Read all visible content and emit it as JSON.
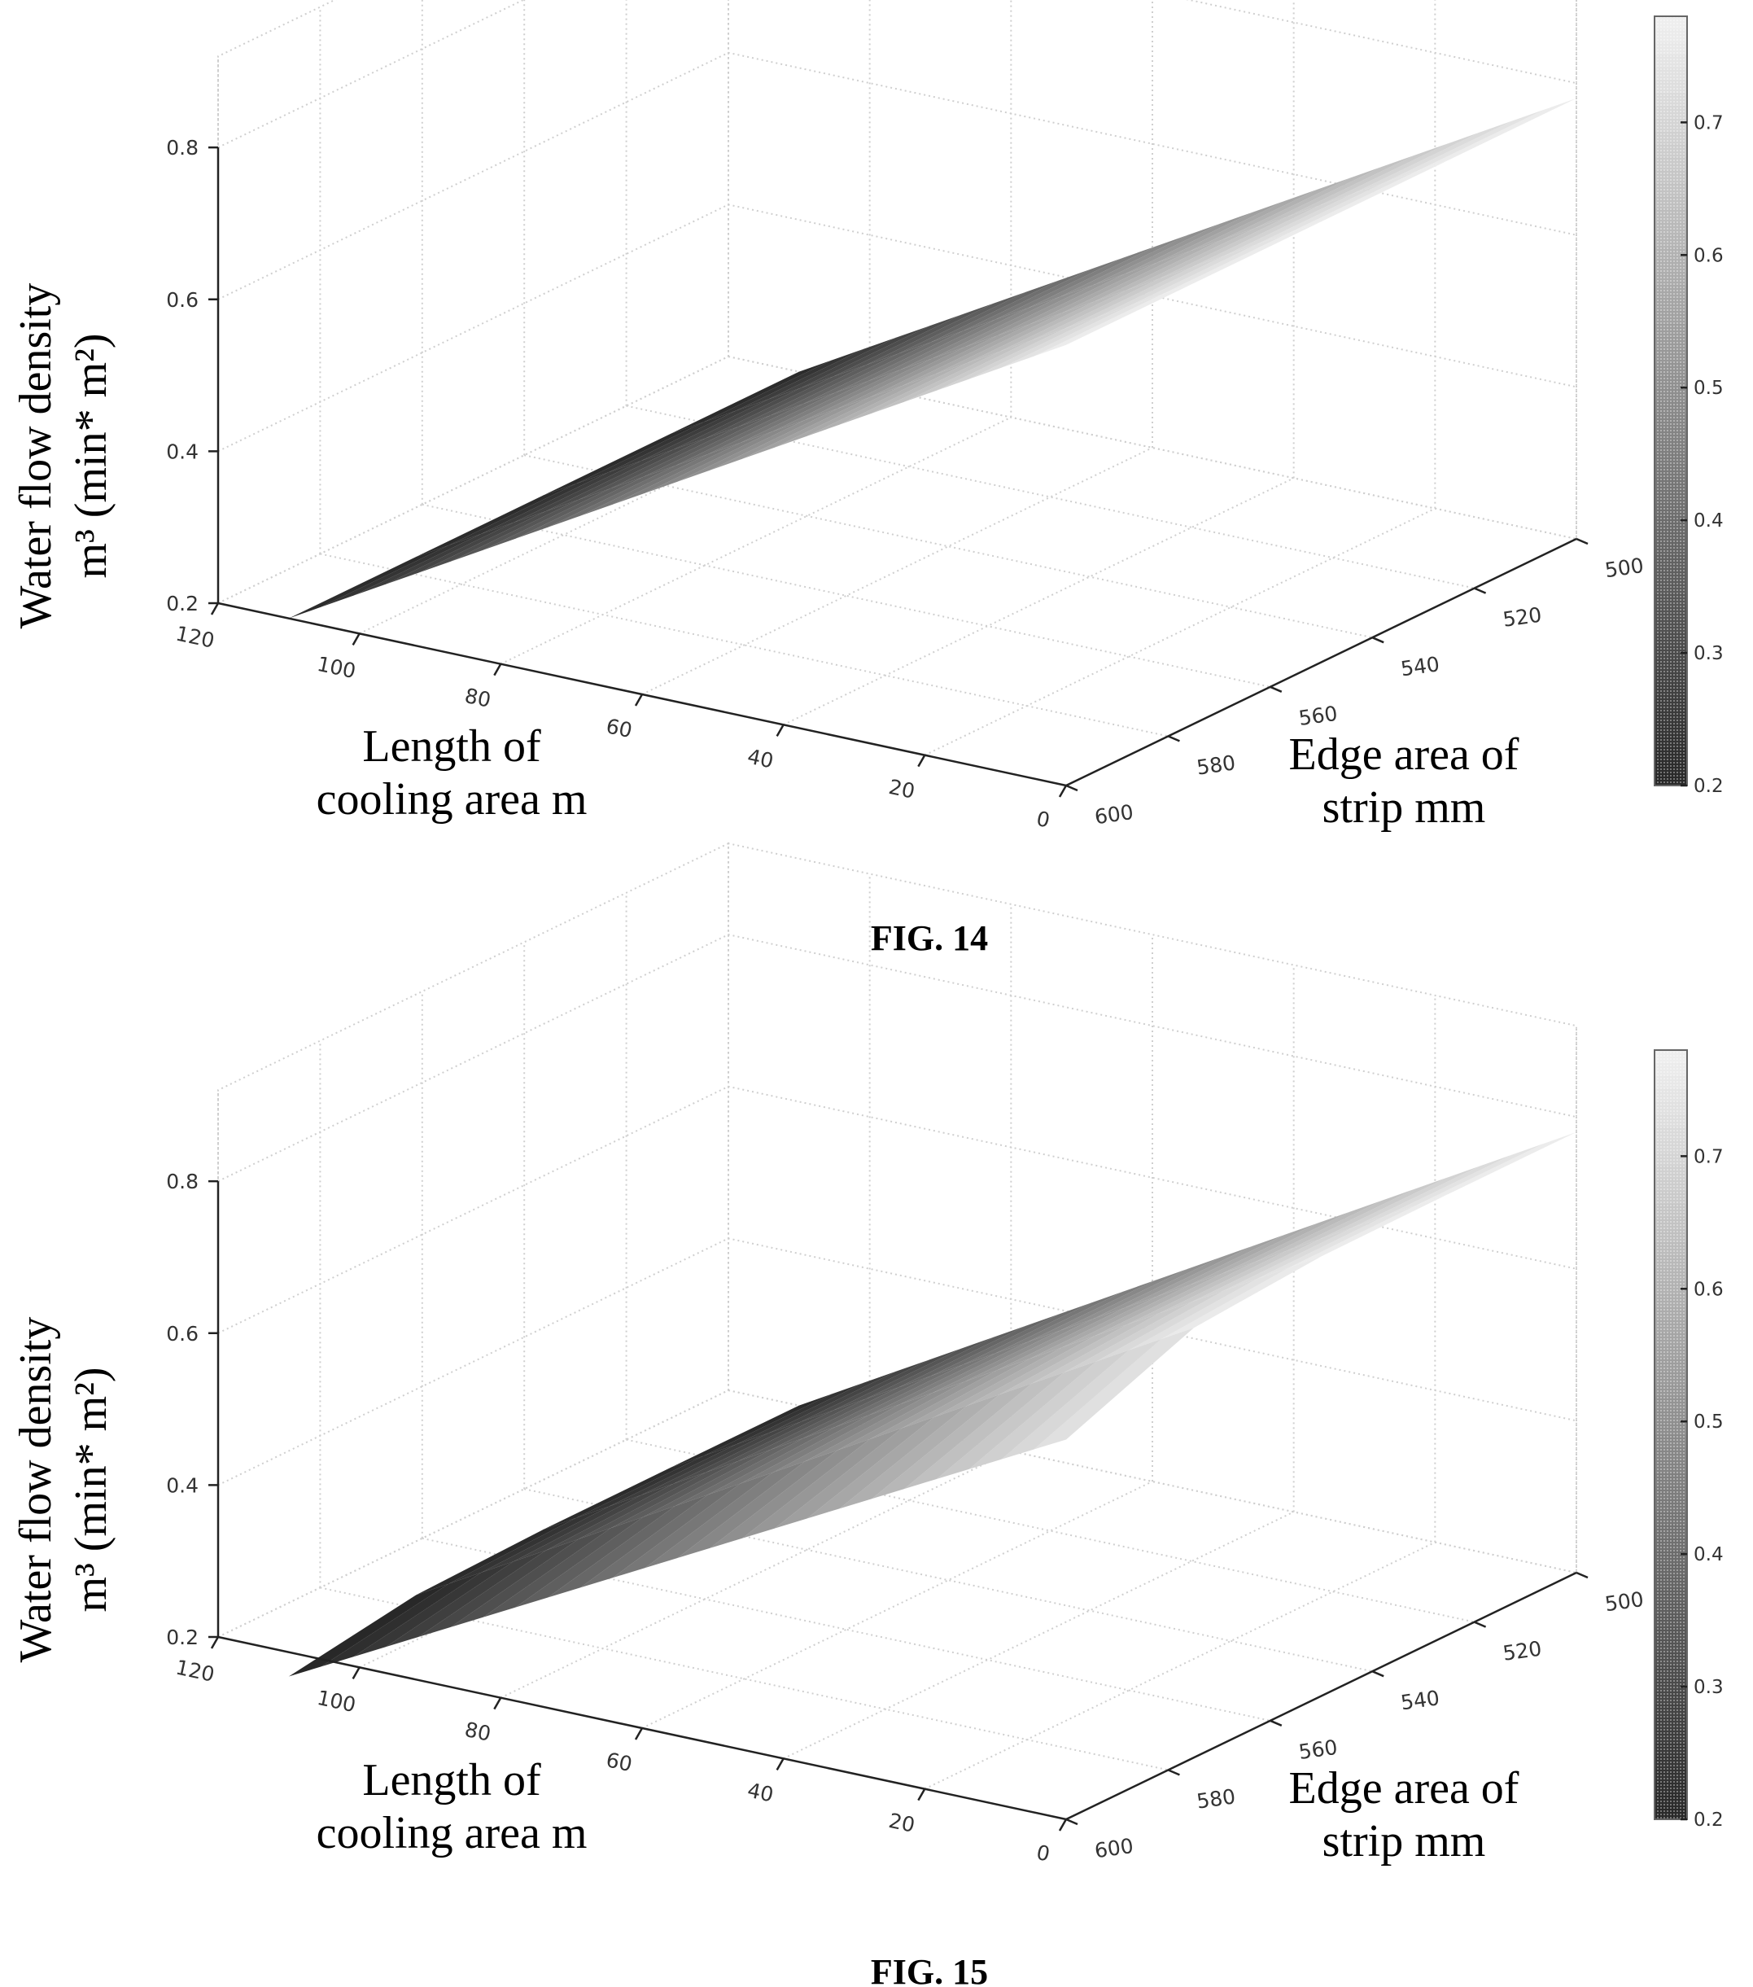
{
  "chart_data": [
    {
      "type": "surface3d",
      "caption": "FIG. 14",
      "zlabel": [
        "Water flow density",
        "m³ (min* m²)"
      ],
      "xlabel": [
        "Length of",
        "cooling area m"
      ],
      "ylabel": [
        "Edge area of",
        "strip mm"
      ],
      "x_ticks": [
        "120",
        "100",
        "80",
        "60",
        "40",
        "20",
        "0"
      ],
      "y_ticks": [
        "500",
        "520",
        "540",
        "560",
        "580",
        "600"
      ],
      "z_ticks": [
        "0.8",
        "0.6",
        "0.4",
        "0.2"
      ],
      "colorbar_ticks": [
        "0.7",
        "0.6",
        "0.5",
        "0.4",
        "0.3",
        "0.2"
      ],
      "xlim": [
        0,
        120
      ],
      "ylim": [
        500,
        600
      ],
      "zlim": [
        0.2,
        0.8
      ],
      "colorbar_range": [
        0.2,
        0.78
      ],
      "colormap": "gray",
      "surface": {
        "x": [
          0,
          110
        ],
        "y": [
          500,
          600
        ],
        "z": [
          [
            0.78,
            0.78
          ],
          [
            0.2,
            0.2
          ]
        ],
        "shape": "planar"
      }
    },
    {
      "type": "surface3d",
      "caption": "FIG. 15",
      "zlabel": [
        "Water flow density",
        "m³ (min* m²)"
      ],
      "xlabel": [
        "Length of",
        "cooling area m"
      ],
      "ylabel": [
        "Edge area of",
        "strip mm"
      ],
      "x_ticks": [
        "120",
        "100",
        "80",
        "60",
        "40",
        "20",
        "0"
      ],
      "y_ticks": [
        "500",
        "520",
        "540",
        "560",
        "580",
        "600"
      ],
      "z_ticks": [
        "0.8",
        "0.6",
        "0.4",
        "0.2"
      ],
      "colorbar_ticks": [
        "0.7",
        "0.6",
        "0.5",
        "0.4",
        "0.3",
        "0.2"
      ],
      "xlim": [
        0,
        120
      ],
      "ylim": [
        500,
        600
      ],
      "zlim": [
        0.2,
        0.8
      ],
      "colorbar_range": [
        0.2,
        0.78
      ],
      "colormap": "gray",
      "surface": {
        "x": [
          0,
          110
        ],
        "y": [
          500,
          600
        ],
        "z": [
          [
            0.78,
            0.78
          ],
          [
            0.2,
            0.2
          ]
        ],
        "shape": "curved near strip edge"
      }
    }
  ]
}
